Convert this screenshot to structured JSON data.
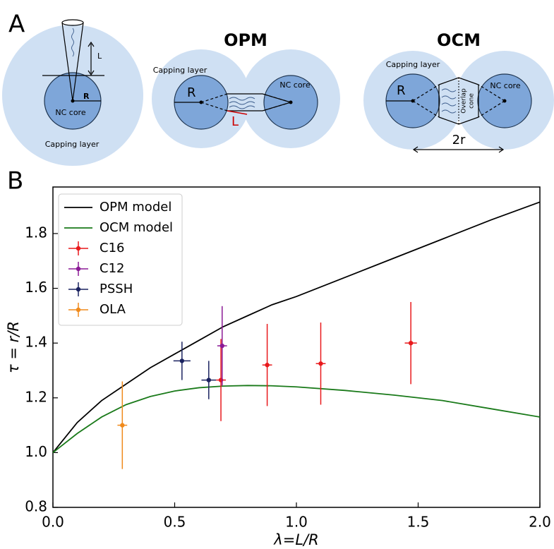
{
  "panel_a": {
    "label": "A",
    "single": {
      "length_label": "L",
      "radius_label": "R",
      "core_label": "NC core",
      "capping_label": "Capping layer"
    },
    "opm": {
      "title": "OPM",
      "capping_label": "Capping layer",
      "radius_label": "R",
      "core_label": "NC core",
      "length_label": "L"
    },
    "ocm": {
      "title": "OCM",
      "capping_label": "Capping layer",
      "radius_label": "R",
      "core_label": "NC core",
      "overlap_label": [
        "Overlap",
        "cone"
      ],
      "distance_label": "2r"
    }
  },
  "panel_b_label": "B",
  "chart_data": {
    "type": "line",
    "x_label": "λ=L/R",
    "y_label": "τ = r/R",
    "xlim": [
      0,
      2.0
    ],
    "ylim": [
      0.8,
      1.97
    ],
    "xticks": [
      {
        "value": 0,
        "label": "0.0"
      },
      0.5,
      {
        "value": 1,
        "label": "1.0"
      },
      1.5,
      {
        "value": 2,
        "label": "2.0"
      }
    ],
    "yticks": [
      0.8,
      {
        "value": 1,
        "label": "1.0"
      },
      1.2,
      1.4,
      1.6,
      1.8
    ],
    "legend": "upper left",
    "series": [
      {
        "name": "OPM model",
        "type": "line",
        "color": "#000000",
        "x": [
          0,
          0.1,
          0.2,
          0.3,
          0.4,
          0.5,
          0.6,
          0.7,
          0.8,
          0.9,
          1.0,
          1.2,
          1.4,
          1.6,
          1.8,
          2.0
        ],
        "values": [
          1.0,
          1.11,
          1.19,
          1.25,
          1.31,
          1.36,
          1.41,
          1.46,
          1.5,
          1.54,
          1.57,
          1.64,
          1.71,
          1.78,
          1.85,
          1.915
        ]
      },
      {
        "name": "OCM model",
        "type": "line",
        "color": "#1a7a1a",
        "x": [
          0,
          0.1,
          0.2,
          0.3,
          0.4,
          0.5,
          0.6,
          0.7,
          0.8,
          0.9,
          1.0,
          1.2,
          1.4,
          1.6,
          1.8,
          2.0
        ],
        "values": [
          1.0,
          1.07,
          1.13,
          1.175,
          1.205,
          1.225,
          1.237,
          1.243,
          1.245,
          1.244,
          1.24,
          1.227,
          1.21,
          1.19,
          1.16,
          1.13
        ]
      },
      {
        "name": "C16",
        "type": "errorbar",
        "color": "#e8191c",
        "x": [
          0.69,
          0.88,
          1.1,
          1.47
        ],
        "values": [
          1.265,
          1.32,
          1.325,
          1.4
        ],
        "yerr": [
          0.15,
          0.15,
          0.15,
          0.15
        ],
        "xerr": [
          0.02,
          0.02,
          0.02,
          0.025
        ]
      },
      {
        "name": "C12",
        "type": "errorbar",
        "color": "#8b1a96",
        "x": [
          0.695
        ],
        "values": [
          1.39
        ],
        "yerr": [
          0.145
        ],
        "xerr": [
          0.02
        ]
      },
      {
        "name": "PSSH",
        "type": "errorbar",
        "color": "#1b2360",
        "x": [
          0.53,
          0.64
        ],
        "values": [
          1.335,
          1.265
        ],
        "yerr": [
          0.07,
          0.07
        ],
        "xerr": [
          0.035,
          0.03
        ]
      },
      {
        "name": "OLA",
        "type": "errorbar",
        "color": "#f08a1c",
        "x": [
          0.285
        ],
        "values": [
          1.1
        ],
        "yerr": [
          0.16
        ],
        "xerr": [
          0.02
        ]
      }
    ]
  }
}
